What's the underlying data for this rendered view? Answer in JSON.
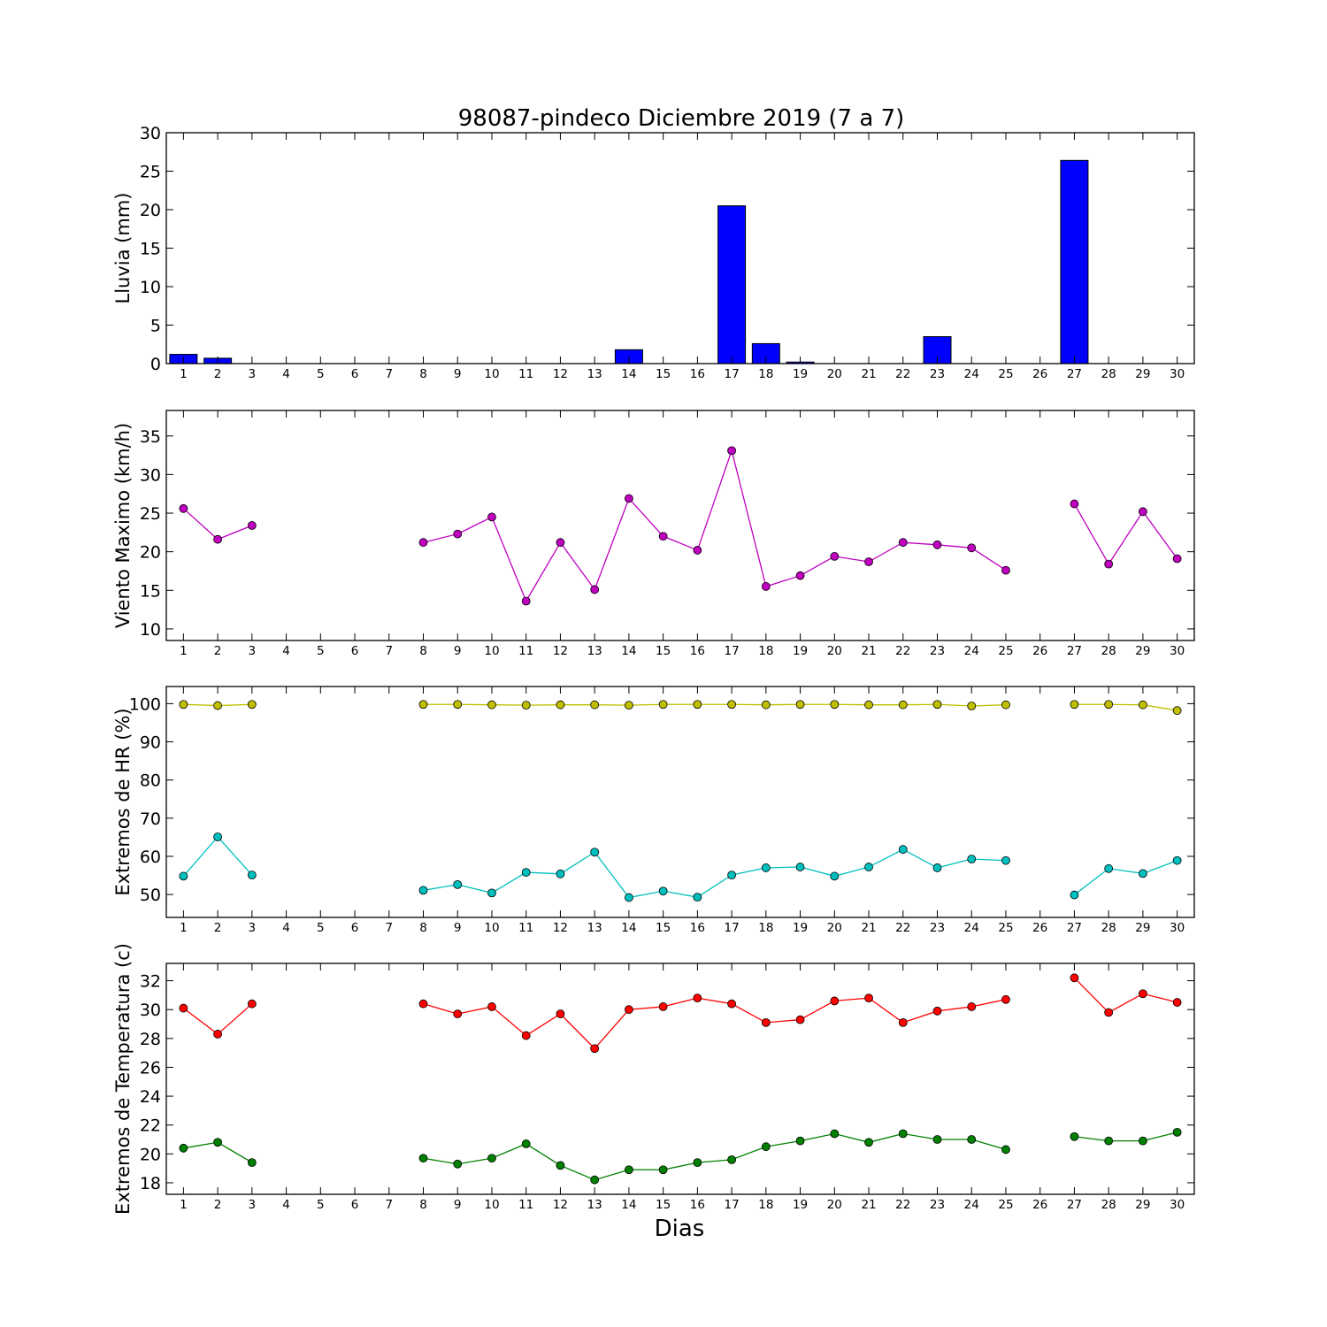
{
  "figure": {
    "title": "98087-pindeco Diciembre 2019  (7 a 7)",
    "xlabel": "Dias"
  },
  "chart_data": [
    {
      "type": "bar",
      "ylabel": "Lluvia (mm)",
      "ylim": [
        0,
        30
      ],
      "yticks": [
        0,
        5,
        10,
        15,
        20,
        25,
        30
      ],
      "x": [
        1,
        2,
        3,
        4,
        5,
        6,
        7,
        8,
        9,
        10,
        11,
        12,
        13,
        14,
        15,
        16,
        17,
        18,
        19,
        20,
        21,
        22,
        23,
        24,
        25,
        26,
        27,
        28,
        29,
        30
      ],
      "series": [
        {
          "color": "#0000ff",
          "values": [
            1.2,
            0.7,
            0,
            0,
            0,
            0,
            0,
            0,
            0,
            0,
            0,
            0,
            0,
            1.8,
            0,
            0,
            20.5,
            2.6,
            0.2,
            0,
            0,
            0,
            3.5,
            0,
            0,
            0,
            26.4,
            0,
            0,
            0
          ]
        }
      ],
      "grid": false
    },
    {
      "type": "line",
      "ylabel": "Viento Maximo (km/h)",
      "ylim": [
        8.5,
        38.3
      ],
      "yticks": [
        10,
        15,
        20,
        25,
        30,
        35
      ],
      "x": [
        1,
        2,
        3,
        4,
        5,
        6,
        7,
        8,
        9,
        10,
        11,
        12,
        13,
        14,
        15,
        16,
        17,
        18,
        19,
        20,
        21,
        22,
        23,
        24,
        25,
        26,
        27,
        28,
        29,
        30
      ],
      "series": [
        {
          "color": "#bf00bf",
          "values": [
            25.6,
            21.6,
            23.4,
            null,
            null,
            null,
            null,
            21.2,
            22.3,
            24.5,
            13.6,
            21.2,
            15.1,
            26.9,
            22.0,
            20.2,
            33.1,
            15.5,
            16.9,
            19.4,
            18.7,
            21.2,
            20.9,
            20.5,
            17.6,
            null,
            26.2,
            18.4,
            25.2,
            19.1
          ]
        }
      ],
      "grid": false
    },
    {
      "type": "line",
      "ylabel": "Extremos de HR (%)",
      "ylim": [
        44,
        104.5
      ],
      "yticks": [
        50,
        60,
        70,
        80,
        90,
        100
      ],
      "x": [
        1,
        2,
        3,
        4,
        5,
        6,
        7,
        8,
        9,
        10,
        11,
        12,
        13,
        14,
        15,
        16,
        17,
        18,
        19,
        20,
        21,
        22,
        23,
        24,
        25,
        26,
        27,
        28,
        29,
        30
      ],
      "series": [
        {
          "color": "#bfbf00",
          "values": [
            99.8,
            99.5,
            99.8,
            null,
            null,
            null,
            null,
            99.8,
            99.8,
            99.7,
            99.6,
            99.7,
            99.7,
            99.6,
            99.8,
            99.8,
            99.8,
            99.7,
            99.8,
            99.8,
            99.7,
            99.7,
            99.8,
            99.4,
            99.7,
            null,
            99.8,
            99.8,
            99.7,
            98.2
          ]
        },
        {
          "color": "#00bfbf",
          "values": [
            54.8,
            65.1,
            55.1,
            null,
            null,
            null,
            null,
            51.1,
            52.6,
            50.4,
            55.8,
            55.4,
            61.1,
            49.2,
            50.9,
            49.3,
            55.1,
            57.0,
            57.2,
            54.8,
            57.2,
            61.8,
            57.0,
            59.3,
            58.9,
            null,
            49.9,
            56.8,
            55.5,
            58.9
          ]
        }
      ],
      "grid": false
    },
    {
      "type": "line",
      "ylabel": "Extremos de Temperatura (c)",
      "ylim": [
        17.2,
        33.2
      ],
      "yticks": [
        18,
        20,
        22,
        24,
        26,
        28,
        30,
        32
      ],
      "x": [
        1,
        2,
        3,
        4,
        5,
        6,
        7,
        8,
        9,
        10,
        11,
        12,
        13,
        14,
        15,
        16,
        17,
        18,
        19,
        20,
        21,
        22,
        23,
        24,
        25,
        26,
        27,
        28,
        29,
        30
      ],
      "series": [
        {
          "color": "#ff0000",
          "values": [
            30.1,
            28.3,
            30.4,
            null,
            null,
            null,
            null,
            30.4,
            29.7,
            30.2,
            28.2,
            29.7,
            27.3,
            30.0,
            30.2,
            30.8,
            30.4,
            29.1,
            29.3,
            30.6,
            30.8,
            29.1,
            29.9,
            30.2,
            30.7,
            null,
            32.2,
            29.8,
            31.1,
            30.5
          ]
        },
        {
          "color": "#008000",
          "values": [
            20.4,
            20.8,
            19.4,
            null,
            null,
            null,
            null,
            19.7,
            19.3,
            19.7,
            20.7,
            19.2,
            18.2,
            18.9,
            18.9,
            19.4,
            19.6,
            20.5,
            20.9,
            21.4,
            20.8,
            21.4,
            21.0,
            21.0,
            20.3,
            null,
            21.2,
            20.9,
            20.9,
            21.5
          ]
        }
      ],
      "grid": false
    }
  ]
}
